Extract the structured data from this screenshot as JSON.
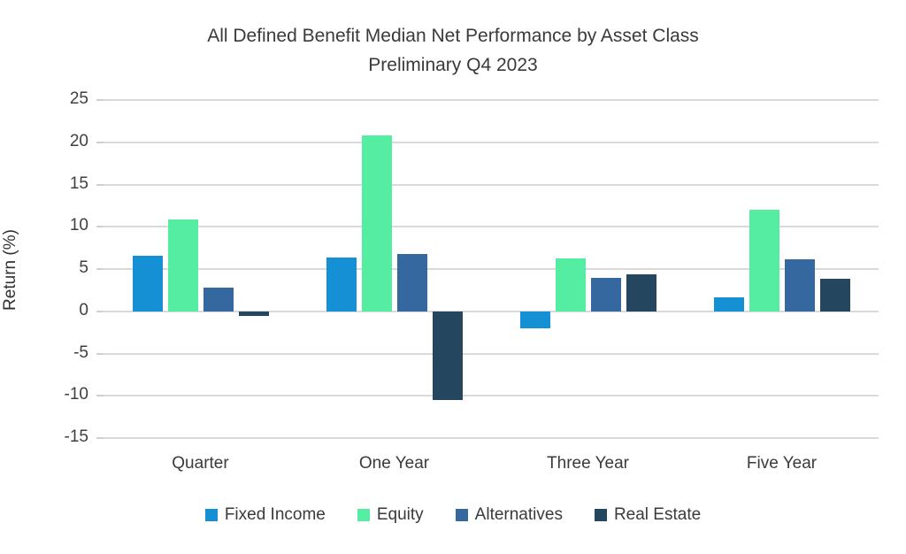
{
  "title": {
    "line1": "All Defined Benefit Median Net Performance by Asset Class",
    "line2": "Preliminary Q4 2023"
  },
  "chart_data": {
    "type": "bar",
    "title": "All Defined Benefit Median Net Performance by Asset Class Preliminary Q4 2023",
    "subtitle": "Preliminary Q4 2023",
    "xlabel": "",
    "ylabel": "Return (%)",
    "ylim": [
      -15,
      25
    ],
    "yticks": [
      25,
      20,
      15,
      10,
      5,
      0,
      -5,
      -10,
      -15
    ],
    "grid": true,
    "legend_position": "bottom",
    "categories": [
      "Quarter",
      "One Year",
      "Three Year",
      "Five Year"
    ],
    "series": [
      {
        "name": "Fixed Income",
        "color": "#1590d4",
        "values": [
          6.6,
          6.4,
          -2.0,
          1.7
        ]
      },
      {
        "name": "Equity",
        "color": "#55eda1",
        "values": [
          10.9,
          20.8,
          6.3,
          12.0
        ]
      },
      {
        "name": "Alternatives",
        "color": "#34689e",
        "values": [
          2.8,
          6.8,
          4.0,
          6.1
        ]
      },
      {
        "name": "Real Estate",
        "color": "#24465f",
        "values": [
          -0.6,
          -10.5,
          4.4,
          3.8
        ]
      }
    ]
  },
  "colors": {
    "background": "#ffffff",
    "gridline": "#d9d9d9",
    "text": "#3a3a3a"
  }
}
